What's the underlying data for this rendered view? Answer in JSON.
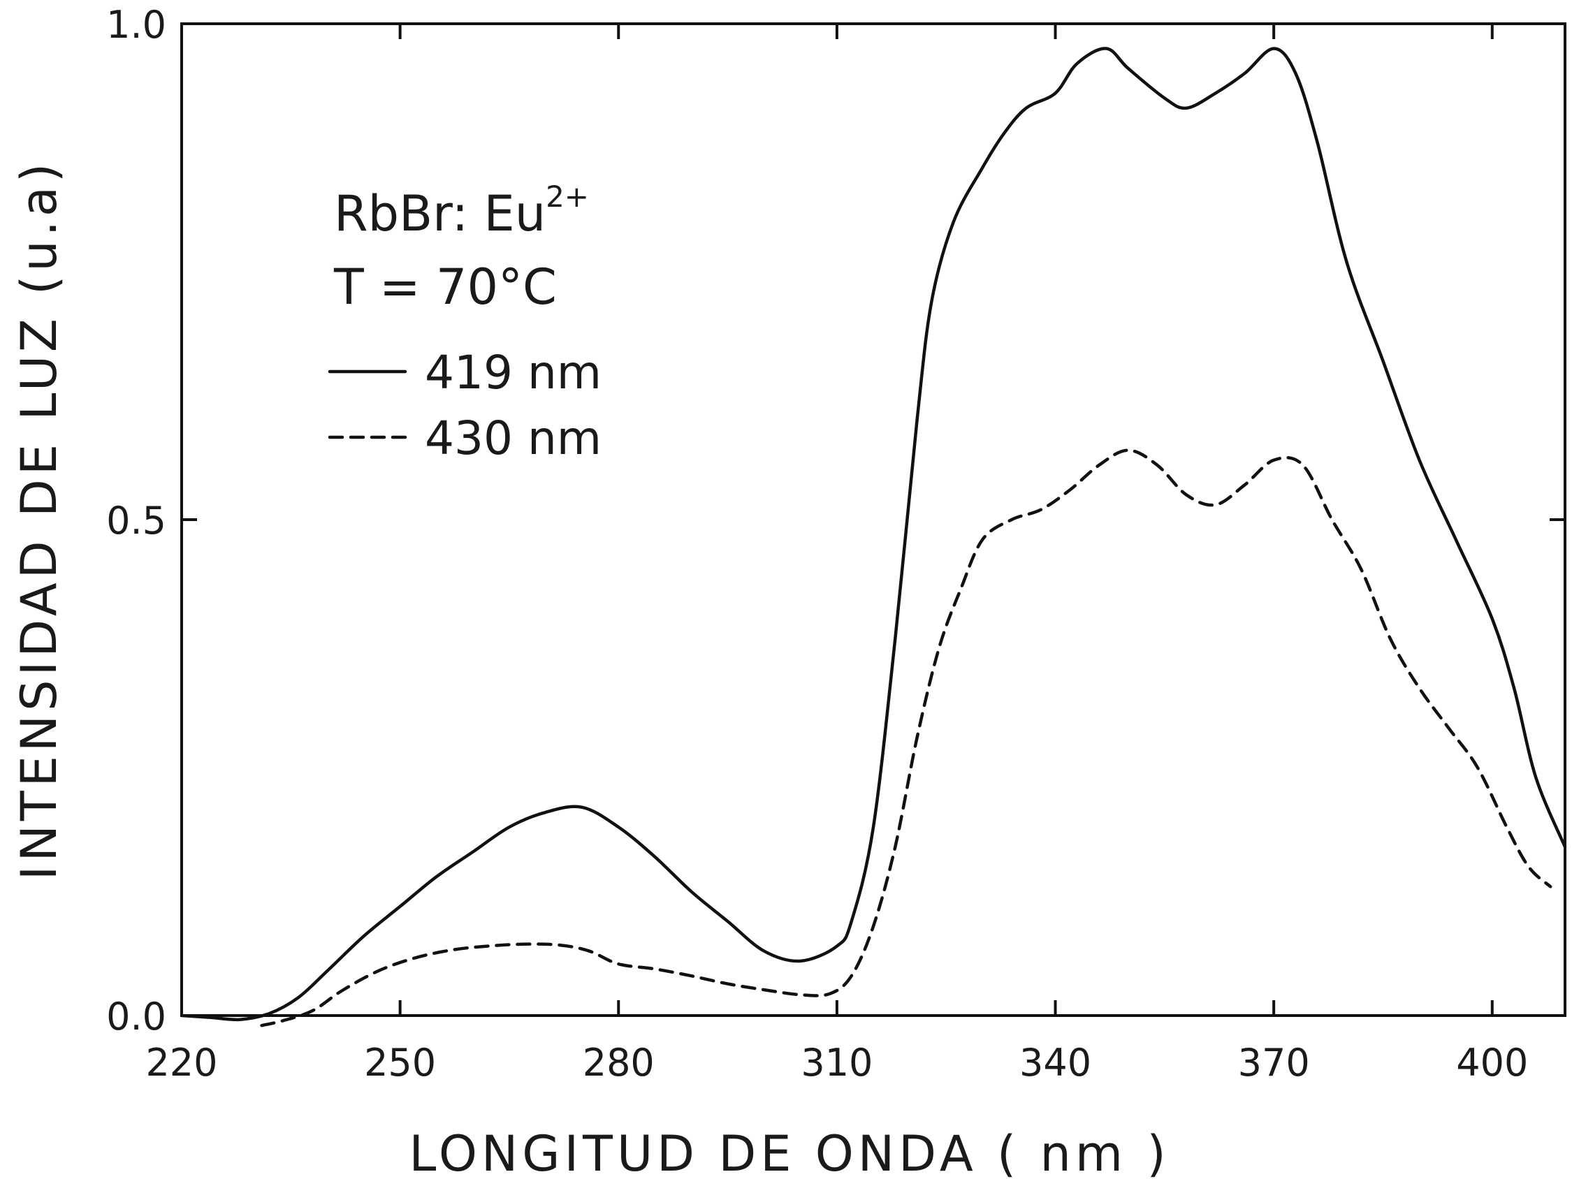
{
  "chart_data": {
    "type": "line",
    "title": "",
    "xlabel": "LONGITUD   DE   ONDA   ( nm )",
    "ylabel": "INTENSIDAD  DE  LUZ  (u.a)",
    "xlim": [
      220,
      410
    ],
    "ylim": [
      0.0,
      1.0
    ],
    "x_ticks": [
      "220",
      "250",
      "280",
      "310",
      "340",
      "370",
      "400"
    ],
    "y_ticks": [
      "0.0",
      "0.5",
      "1.0"
    ],
    "grid": false,
    "legend_position": "top-left (inside plot)",
    "annotation": {
      "line1": "RbBr: Eu",
      "superscript": "2+",
      "line2": "T = 70°C"
    },
    "series": [
      {
        "name": "419  nm",
        "style": "solid",
        "x": [
          220,
          224,
          228,
          232,
          236,
          240,
          245,
          250,
          255,
          260,
          265,
          270,
          275,
          280,
          285,
          290,
          295,
          300,
          305,
          310,
          312,
          315,
          318,
          321,
          323,
          326,
          330,
          333,
          336,
          340,
          343,
          347,
          350,
          355,
          358,
          362,
          366,
          370,
          373,
          376,
          380,
          385,
          390,
          395,
          400,
          403,
          406,
          410
        ],
        "y": [
          0.0,
          -0.002,
          -0.004,
          0.002,
          0.018,
          0.045,
          0.08,
          0.11,
          0.14,
          0.165,
          0.19,
          0.205,
          0.21,
          0.19,
          0.16,
          0.125,
          0.095,
          0.065,
          0.055,
          0.07,
          0.095,
          0.19,
          0.38,
          0.6,
          0.72,
          0.8,
          0.855,
          0.89,
          0.915,
          0.93,
          0.96,
          0.975,
          0.955,
          0.925,
          0.915,
          0.93,
          0.95,
          0.975,
          0.95,
          0.88,
          0.76,
          0.66,
          0.56,
          0.48,
          0.4,
          0.33,
          0.24,
          0.17
        ]
      },
      {
        "name": "430 nm",
        "style": "dashed",
        "x": [
          231,
          234,
          238,
          242,
          247,
          252,
          257,
          262,
          267,
          272,
          276,
          280,
          285,
          290,
          295,
          300,
          305,
          309,
          312,
          315,
          318,
          321,
          324,
          327,
          330,
          334,
          338,
          342,
          346,
          350,
          354,
          358,
          362,
          366,
          370,
          374,
          378,
          382,
          386,
          390,
          394,
          398,
          402,
          405,
          408
        ],
        "y": [
          -0.01,
          -0.005,
          0.005,
          0.025,
          0.045,
          0.058,
          0.066,
          0.07,
          0.072,
          0.071,
          0.065,
          0.052,
          0.047,
          0.04,
          0.032,
          0.026,
          0.021,
          0.022,
          0.04,
          0.09,
          0.17,
          0.28,
          0.37,
          0.43,
          0.48,
          0.5,
          0.51,
          0.53,
          0.555,
          0.57,
          0.555,
          0.525,
          0.515,
          0.535,
          0.56,
          0.555,
          0.5,
          0.45,
          0.38,
          0.33,
          0.29,
          0.25,
          0.19,
          0.15,
          0.13
        ]
      }
    ]
  }
}
